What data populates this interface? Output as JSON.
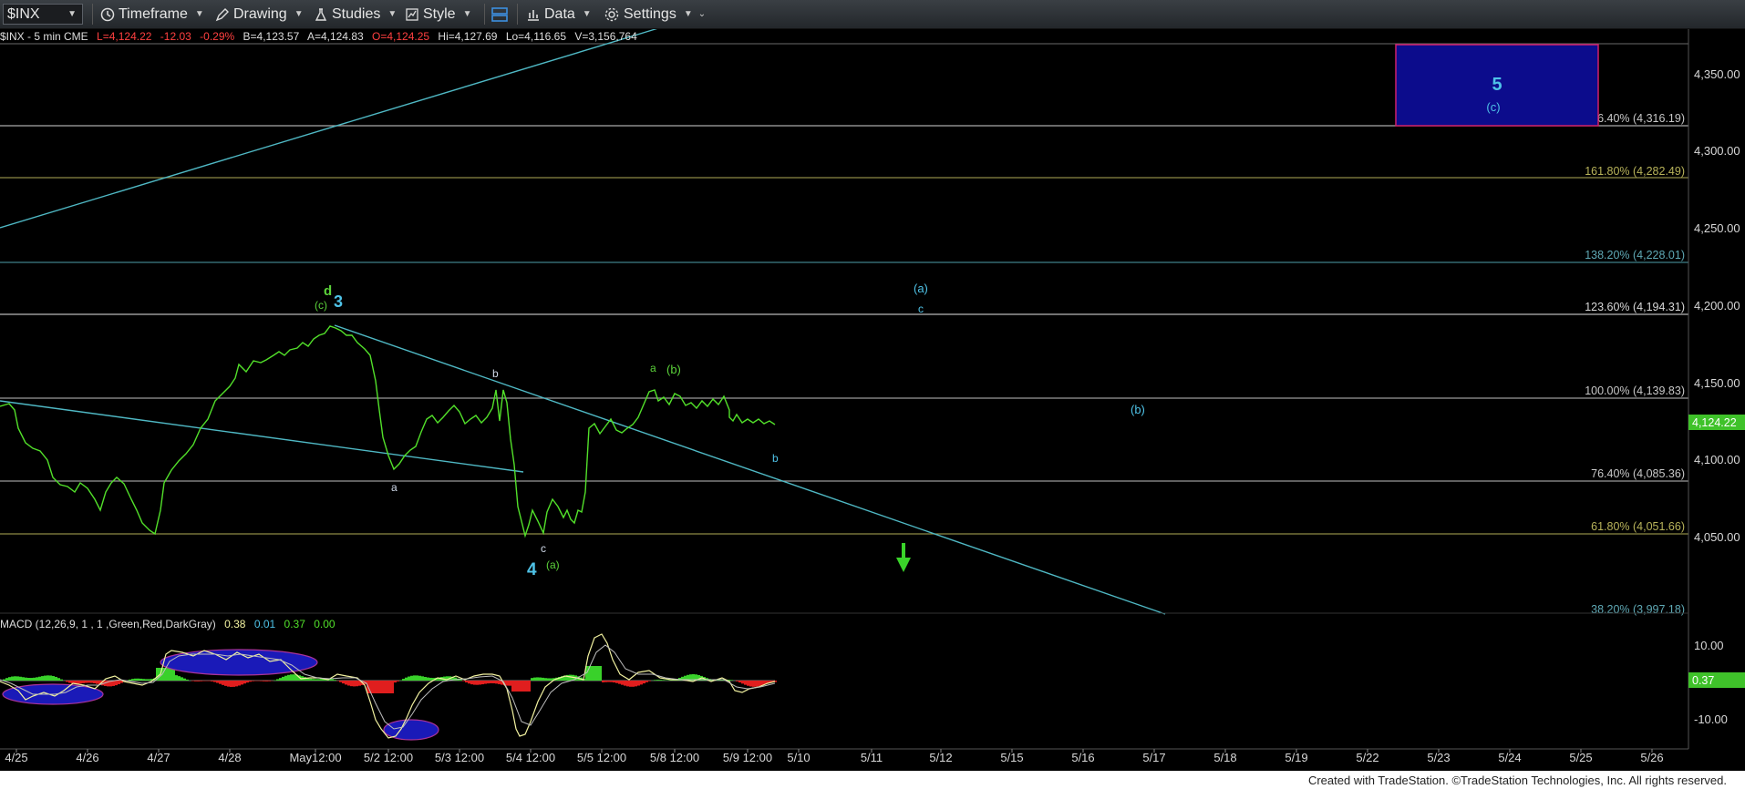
{
  "toolbar": {
    "symbol": "$INX",
    "timeframe": "Timeframe",
    "drawing": "Drawing",
    "studies": "Studies",
    "style": "Style",
    "data": "Data",
    "settings": "Settings"
  },
  "info": {
    "title": "$INX - 5 min  CME",
    "last": "L=4,124.22",
    "chg": "-12.03",
    "pct": "-0.29%",
    "bid": "B=4,123.57",
    "ask": "A=4,124.83",
    "open": "O=4,124.25",
    "hi": "Hi=4,127.69",
    "lo": "Lo=4,116.65",
    "vol": "V=3,156,764"
  },
  "price_axis": {
    "ticks": [
      "4,350.00",
      "4,300.00",
      "4,250.00",
      "4,200.00",
      "4,150.00",
      "4,100.00",
      "4,050.00"
    ],
    "last_price": "4,124.22"
  },
  "fib_levels": [
    {
      "label": "176.40% (4,316.19)",
      "color": "#c8c8c8"
    },
    {
      "label": "161.80% (4,282.49)",
      "color": "#b8b35a"
    },
    {
      "label": "138.20% (4,228.01)",
      "color": "#5fa9b5"
    },
    {
      "label": "123.60% (4,194.31)",
      "color": "#d8d8d8"
    },
    {
      "label": "100.00% (4,139.83)",
      "color": "#c8c8c8"
    },
    {
      "label": "76.40% (4,085.36)",
      "color": "#c8c8c8"
    },
    {
      "label": "61.80% (4,051.66)",
      "color": "#b8b35a"
    },
    {
      "label": "38.20% (3,997.18)",
      "color": "#5fa9b5"
    }
  ],
  "wave_labels": {
    "d": "d",
    "c_paren": "(c)",
    "three": "3",
    "four": "4",
    "a_paren": "(a)",
    "five": "5",
    "c_paren_box": "(c)",
    "a_low": "a",
    "b_mid": "b",
    "c_low": "c",
    "a_top": "a",
    "b_paren": "(b)",
    "b_right": "b",
    "a_paren_future": "(a)",
    "c_future": "c",
    "b_paren_future": "(b)"
  },
  "macd": {
    "title": "MACD (12,26,9, 1 , 1 ,Green,Red,DarkGray)",
    "v1": "0.38",
    "v2": "0.01",
    "v3": "0.37",
    "v4": "0.00",
    "ticks": [
      "10.00",
      "-10.00"
    ],
    "current": "0.37"
  },
  "time_axis": [
    "4/25",
    "4/26",
    "4/27",
    "4/28",
    "May12:00",
    "5/2 12:00",
    "5/3 12:00",
    "5/4 12:00",
    "5/5 12:00",
    "5/8 12:00",
    "5/9 12:00",
    "5/10",
    "5/11",
    "5/12",
    "5/15",
    "5/16",
    "5/17",
    "5/18",
    "5/19",
    "5/22",
    "5/23",
    "5/24",
    "5/25",
    "5/26"
  ],
  "footer": "Created with TradeStation. ©TradeStation Technologies, Inc. All rights reserved.",
  "colors": {
    "price": "#52e02a",
    "trend": "#4fb8c4",
    "wave_blue": "#4fc3e8",
    "wave_green": "#5bd23a",
    "box": "#0c0c8c",
    "box_border": "#d0206a"
  }
}
